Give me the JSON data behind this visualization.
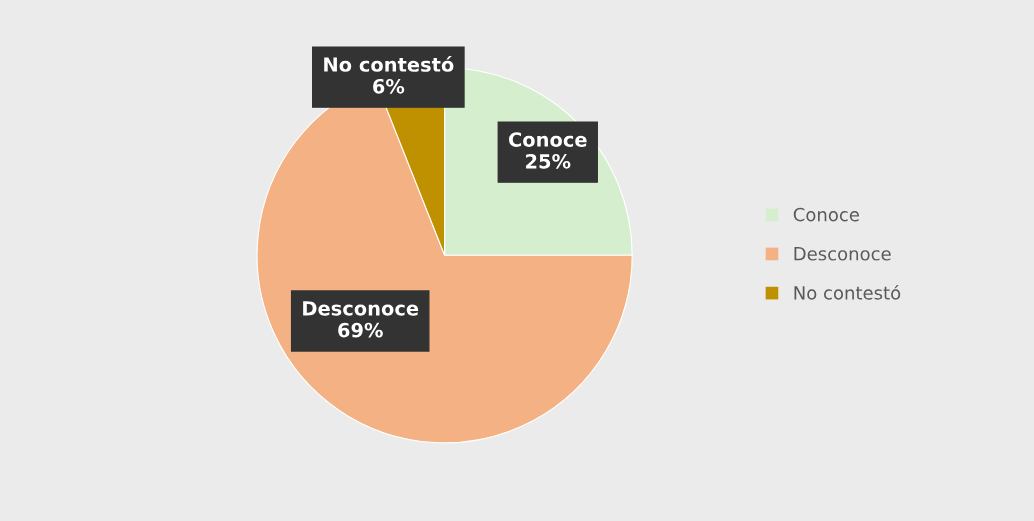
{
  "chart_data": {
    "type": "pie",
    "categories": [
      "Conoce",
      "Desconoce",
      "No contestó"
    ],
    "values": [
      25,
      69,
      6
    ],
    "colors": [
      "#d5efce",
      "#f4b183",
      "#bf9000"
    ],
    "value_labels": [
      "25%",
      "69%",
      "6%"
    ],
    "legend": "right"
  }
}
